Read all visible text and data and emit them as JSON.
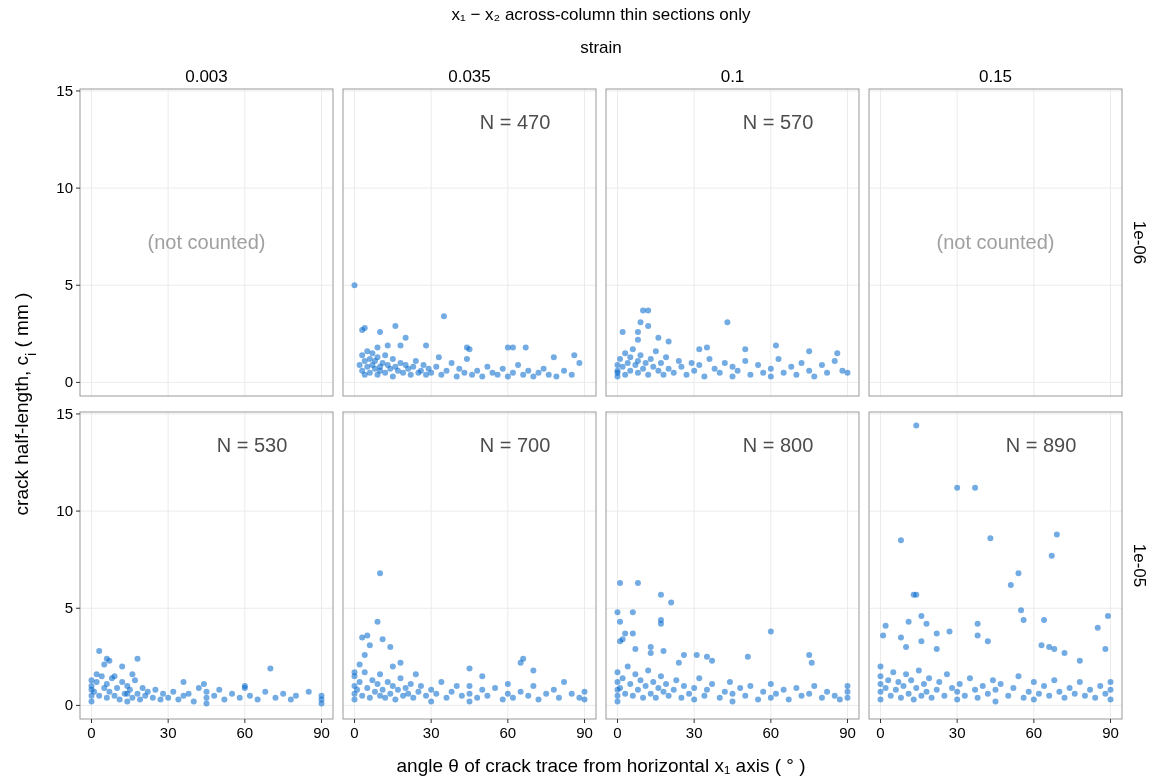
{
  "chart_data": [
    {
      "type": "scatter",
      "x2label": "0.003",
      "ylabel": "crack half-length, c$_{i}$ ( mm )",
      "annotations": [
        "(not counted)"
      ],
      "xlim": [
        -4.5,
        94.5
      ],
      "ylim": [
        -0.7,
        15.1
      ],
      "xticks": [
        0,
        30,
        60,
        90
      ],
      "yticks": [
        0,
        5,
        10,
        15
      ],
      "grid": true,
      "tick_labels": "y"
    },
    {
      "type": "scatter",
      "title": "x₁ − x₂ across-column thin sections only",
      "subtitle": "strain",
      "x2label": "0.035",
      "annotations": [
        "N = 470"
      ],
      "color": "#0066cc",
      "marker": "circle",
      "xlim": [
        -4.5,
        94.5
      ],
      "ylim": [
        -0.7,
        15.1
      ],
      "xticks": [
        0,
        30,
        60,
        90
      ],
      "yticks": [
        0,
        5,
        10,
        15
      ],
      "grid": true,
      "tick_labels": false,
      "x": [
        0,
        35,
        3,
        4,
        10,
        16,
        20,
        9,
        13,
        18,
        28,
        44,
        45,
        60,
        62,
        67,
        78,
        86,
        88,
        2,
        3,
        3,
        4,
        4,
        5,
        5,
        6,
        6,
        7,
        7,
        8,
        8,
        9,
        9,
        10,
        10,
        11,
        12,
        12,
        13,
        14,
        15,
        15,
        16,
        17,
        18,
        19,
        20,
        21,
        22,
        23,
        24,
        25,
        26,
        27,
        28,
        29,
        30,
        32,
        33,
        34,
        36,
        38,
        40,
        41,
        43,
        44,
        46,
        48,
        50,
        52,
        54,
        56,
        58,
        60,
        62,
        64,
        66,
        68,
        70,
        72,
        74,
        76,
        79,
        82,
        85
      ],
      "values": [
        5.0,
        3.4,
        2.7,
        2.8,
        2.6,
        2.9,
        2.3,
        1.8,
        1.9,
        1.9,
        1.9,
        1.8,
        1.7,
        1.8,
        1.8,
        1.8,
        1.3,
        1.4,
        1.0,
        0.9,
        1.4,
        0.6,
        1.1,
        0.4,
        1.6,
        0.8,
        1.2,
        0.5,
        0.9,
        1.5,
        0.7,
        1.1,
        0.4,
        1.3,
        0.8,
        0.6,
        1.0,
        1.4,
        0.5,
        0.9,
        0.7,
        1.2,
        0.3,
        0.8,
        0.6,
        1.0,
        0.5,
        0.9,
        0.7,
        0.4,
        0.8,
        1.1,
        0.5,
        0.6,
        0.9,
        0.4,
        0.7,
        0.5,
        0.8,
        1.3,
        0.4,
        0.6,
        1.0,
        0.3,
        0.7,
        0.5,
        1.2,
        0.4,
        0.6,
        0.3,
        0.8,
        0.5,
        0.4,
        0.7,
        0.3,
        0.5,
        0.9,
        0.4,
        0.6,
        0.3,
        0.5,
        0.7,
        0.4,
        0.3,
        0.6,
        0.4
      ]
    },
    {
      "type": "scatter",
      "x2label": "0.1",
      "annotations": [
        "N = 570"
      ],
      "color": "#0066cc",
      "marker": "circle",
      "xlim": [
        -4.5,
        94.5
      ],
      "ylim": [
        -0.7,
        15.1
      ],
      "xticks": [
        0,
        30,
        60,
        90
      ],
      "yticks": [
        0,
        5,
        10,
        15
      ],
      "grid": true,
      "tick_labels": false,
      "x": [
        10,
        12,
        9,
        12,
        8,
        43,
        2,
        8,
        16,
        20,
        35,
        32,
        50,
        62,
        75,
        86,
        90,
        0,
        0,
        0,
        0,
        1,
        2,
        3,
        3,
        4,
        5,
        5,
        6,
        7,
        8,
        8,
        9,
        10,
        11,
        12,
        13,
        14,
        15,
        16,
        17,
        18,
        19,
        20,
        22,
        24,
        25,
        27,
        29,
        30,
        32,
        34,
        36,
        38,
        40,
        42,
        45,
        45,
        47,
        50,
        52,
        55,
        57,
        60,
        60,
        63,
        65,
        68,
        70,
        72,
        75,
        77,
        80,
        82,
        85,
        88
      ],
      "values": [
        3.7,
        3.7,
        3.1,
        2.9,
        2.6,
        3.1,
        2.6,
        2.2,
        2.3,
        2.1,
        1.8,
        1.7,
        1.7,
        1.9,
        1.6,
        1.5,
        0.5,
        0.3,
        0.6,
        0.9,
        0.5,
        1.2,
        0.8,
        1.5,
        0.4,
        1.0,
        1.3,
        0.6,
        1.7,
        0.9,
        1.1,
        0.5,
        1.4,
        0.7,
        1.0,
        0.4,
        1.2,
        0.8,
        1.6,
        0.6,
        1.0,
        0.4,
        1.3,
        0.7,
        0.5,
        1.1,
        0.8,
        0.4,
        1.0,
        0.6,
        0.9,
        0.3,
        1.2,
        0.7,
        0.5,
        1.0,
        0.3,
        0.8,
        0.6,
        1.1,
        0.4,
        0.9,
        0.5,
        0.3,
        0.7,
        1.2,
        0.5,
        0.8,
        0.4,
        1.0,
        0.6,
        0.3,
        0.9,
        0.5,
        1.1,
        0.6
      ]
    },
    {
      "type": "scatter",
      "x2label": "0.15",
      "y2label": "1e-06",
      "annotations": [
        "(not counted)"
      ],
      "xlim": [
        -4.5,
        94.5
      ],
      "ylim": [
        -0.7,
        15.1
      ],
      "xticks": [
        0,
        30,
        60,
        90
      ],
      "yticks": [
        0,
        5,
        10,
        15
      ],
      "grid": true,
      "tick_labels": false
    },
    {
      "type": "scatter",
      "annotations": [
        "N = 530"
      ],
      "color": "#0066cc",
      "marker": "circle",
      "xlim": [
        -4.5,
        94.5
      ],
      "ylim": [
        -0.7,
        15.1
      ],
      "xticks": [
        0,
        30,
        60,
        90
      ],
      "yticks": [
        0,
        5,
        10,
        15
      ],
      "grid": true,
      "x": [
        3,
        6,
        5,
        7,
        12,
        18,
        70,
        2,
        9,
        16,
        36,
        44,
        60,
        0,
        0,
        0,
        0,
        0,
        1,
        2,
        3,
        4,
        5,
        6,
        6,
        7,
        8,
        9,
        10,
        11,
        12,
        13,
        14,
        14,
        14,
        15,
        16,
        17,
        18,
        19,
        20,
        21,
        22,
        24,
        25,
        27,
        28,
        30,
        32,
        34,
        36,
        38,
        40,
        42,
        45,
        45,
        45,
        48,
        50,
        52,
        55,
        58,
        60,
        62,
        65,
        68,
        72,
        75,
        78,
        80,
        85,
        90,
        90,
        90
      ],
      "values": [
        2.8,
        2.4,
        2.1,
        2.3,
        2.0,
        2.4,
        1.9,
        1.6,
        1.5,
        1.6,
        1.2,
        1.1,
        1.0,
        0.2,
        0.5,
        0.8,
        1.0,
        1.3,
        0.7,
        1.2,
        0.5,
        1.5,
        0.9,
        0.4,
        1.1,
        0.7,
        1.4,
        0.5,
        0.9,
        0.3,
        1.2,
        0.6,
        0.2,
        0.6,
        1.0,
        0.8,
        0.4,
        1.3,
        0.6,
        0.3,
        0.9,
        0.5,
        0.7,
        0.4,
        0.8,
        0.3,
        0.6,
        0.4,
        0.7,
        0.3,
        0.5,
        0.6,
        0.2,
        0.9,
        0.1,
        0.4,
        0.7,
        0.5,
        0.8,
        0.3,
        0.6,
        0.4,
        0.9,
        0.5,
        0.3,
        0.7,
        0.4,
        0.6,
        0.3,
        0.5,
        0.7,
        0.1,
        0.3,
        0.5
      ]
    },
    {
      "type": "scatter",
      "xlabel": "angle θ of crack trace from horizontal  x₁  axis  ( ° )",
      "annotations": [
        "N = 700"
      ],
      "color": "#0066cc",
      "marker": "circle",
      "xlim": [
        -4.5,
        94.5
      ],
      "ylim": [
        -0.7,
        15.1
      ],
      "xticks": [
        0,
        30,
        60,
        90
      ],
      "yticks": [
        0,
        5,
        10,
        15
      ],
      "grid": true,
      "tick_labels": "x",
      "x": [
        10,
        9,
        3,
        5,
        11,
        6,
        14,
        2,
        18,
        45,
        66,
        65,
        70,
        15,
        0,
        4,
        24,
        50,
        0,
        0,
        0,
        0,
        1,
        2,
        3,
        4,
        5,
        6,
        7,
        8,
        9,
        10,
        10,
        11,
        12,
        13,
        14,
        15,
        16,
        17,
        18,
        19,
        20,
        21,
        22,
        23,
        25,
        26,
        28,
        30,
        30,
        32,
        34,
        36,
        38,
        40,
        42,
        45,
        45,
        45,
        48,
        50,
        52,
        55,
        58,
        60,
        60,
        62,
        65,
        68,
        70,
        72,
        75,
        78,
        80,
        82,
        85,
        88,
        90,
        90
      ],
      "values": [
        6.8,
        4.3,
        3.5,
        3.6,
        3.4,
        3.1,
        3.0,
        2.1,
        2.2,
        1.9,
        2.4,
        2.2,
        1.8,
        2.0,
        1.7,
        2.6,
        1.6,
        1.5,
        0.3,
        0.6,
        1.0,
        1.5,
        0.8,
        1.2,
        0.5,
        1.7,
        0.9,
        0.4,
        1.3,
        0.7,
        1.1,
        0.5,
        1.6,
        0.8,
        0.4,
        1.2,
        0.6,
        1.0,
        0.3,
        0.8,
        1.4,
        0.5,
        0.9,
        0.6,
        1.1,
        0.4,
        0.7,
        1.0,
        0.5,
        0.2,
        0.8,
        0.6,
        1.2,
        0.4,
        0.7,
        1.0,
        0.5,
        0.2,
        0.6,
        1.0,
        0.4,
        0.8,
        0.5,
        0.9,
        0.3,
        0.6,
        1.1,
        0.4,
        0.7,
        0.5,
        1.0,
        0.3,
        0.6,
        0.8,
        0.4,
        1.2,
        0.6,
        0.4,
        0.3,
        0.7
      ]
    },
    {
      "type": "scatter",
      "annotations": [
        "N = 800"
      ],
      "color": "#0066cc",
      "marker": "circle",
      "xlim": [
        -4.5,
        94.5
      ],
      "ylim": [
        -0.7,
        15.1
      ],
      "xticks": [
        0,
        30,
        60,
        90
      ],
      "yticks": [
        0,
        5,
        10,
        15
      ],
      "grid": true,
      "tick_labels": "x",
      "x": [
        1,
        8,
        17,
        21,
        0,
        1,
        6,
        17,
        17,
        3,
        6,
        1,
        2,
        7,
        13,
        13,
        18,
        26,
        24,
        31,
        35,
        37,
        60,
        51,
        75,
        76,
        0,
        0,
        0,
        0,
        0,
        1,
        2,
        3,
        4,
        5,
        6,
        7,
        8,
        9,
        10,
        11,
        12,
        13,
        14,
        15,
        16,
        17,
        18,
        19,
        20,
        22,
        23,
        25,
        26,
        28,
        30,
        30,
        32,
        34,
        35,
        37,
        40,
        42,
        44,
        45,
        45,
        48,
        50,
        52,
        55,
        57,
        60,
        60,
        62,
        65,
        67,
        70,
        72,
        75,
        77,
        80,
        82,
        85,
        87,
        90,
        90,
        90
      ],
      "values": [
        6.3,
        6.3,
        5.7,
        5.3,
        4.8,
        4.3,
        4.8,
        4.4,
        4.2,
        3.7,
        3.7,
        3.3,
        3.4,
        2.9,
        3.0,
        2.7,
        2.8,
        2.6,
        2.2,
        2.6,
        2.5,
        2.3,
        3.8,
        2.5,
        2.6,
        2.2,
        0.2,
        0.5,
        0.8,
        1.2,
        1.7,
        0.9,
        1.4,
        0.6,
        2.0,
        1.1,
        0.5,
        1.6,
        0.8,
        1.3,
        0.4,
        1.0,
        1.8,
        0.6,
        1.2,
        0.4,
        0.9,
        1.5,
        0.7,
        1.1,
        0.5,
        0.8,
        1.3,
        0.4,
        1.0,
        0.6,
        0.3,
        0.9,
        1.4,
        0.5,
        0.8,
        1.1,
        0.4,
        0.7,
        1.2,
        0.2,
        0.6,
        0.9,
        0.5,
        1.0,
        0.3,
        0.7,
        0.4,
        1.1,
        0.6,
        0.8,
        0.3,
        0.9,
        0.5,
        0.6,
        1.0,
        0.4,
        0.7,
        0.5,
        0.3,
        0.4,
        0.7,
        1.0
      ]
    },
    {
      "type": "scatter",
      "y2label": "1e-05",
      "annotations": [
        "N = 890"
      ],
      "color": "#0066cc",
      "marker": "circle",
      "xlim": [
        -4.5,
        94.5
      ],
      "ylim": [
        -0.7,
        15.1
      ],
      "xticks": [
        0,
        30,
        60,
        90
      ],
      "yticks": [
        0,
        5,
        10,
        15
      ],
      "grid": true,
      "tick_labels": "x",
      "x": [
        14,
        30,
        37,
        8,
        43,
        69,
        67,
        54,
        51,
        13,
        14,
        55,
        16,
        11,
        56,
        64,
        85,
        89,
        2,
        18,
        38,
        1,
        27,
        38,
        42,
        8,
        16,
        10,
        22,
        22,
        63,
        66,
        68,
        72,
        88,
        78,
        0,
        0,
        0,
        0,
        0,
        2,
        3,
        4,
        5,
        6,
        7,
        8,
        9,
        10,
        11,
        12,
        13,
        14,
        15,
        16,
        17,
        18,
        19,
        20,
        22,
        23,
        25,
        26,
        28,
        30,
        30,
        31,
        33,
        35,
        37,
        38,
        40,
        42,
        44,
        45,
        45,
        47,
        50,
        52,
        54,
        56,
        58,
        60,
        60,
        62,
        64,
        66,
        68,
        70,
        72,
        74,
        76,
        78,
        80,
        82,
        84,
        86,
        88,
        90,
        90,
        90
      ],
      "values": [
        14.4,
        11.2,
        11.2,
        8.5,
        8.6,
        8.8,
        7.7,
        6.8,
        6.2,
        5.7,
        5.7,
        4.9,
        4.6,
        4.3,
        4.4,
        4.4,
        4.0,
        4.6,
        4.1,
        4.2,
        4.2,
        3.6,
        3.8,
        3.6,
        3.3,
        3.5,
        3.3,
        3.0,
        3.7,
        2.9,
        3.1,
        3.0,
        2.9,
        2.7,
        2.9,
        2.3,
        0.3,
        0.7,
        1.1,
        1.5,
        2.0,
        0.9,
        1.3,
        0.5,
        1.7,
        0.8,
        1.2,
        0.4,
        1.0,
        1.6,
        0.6,
        1.3,
        0.3,
        0.9,
        1.8,
        0.5,
        1.1,
        0.7,
        1.4,
        0.4,
        0.8,
        1.2,
        0.5,
        1.6,
        0.9,
        0.3,
        0.7,
        1.1,
        0.5,
        1.4,
        0.8,
        0.4,
        1.0,
        0.6,
        1.3,
        0.2,
        0.8,
        1.1,
        0.5,
        0.9,
        1.5,
        0.4,
        0.7,
        0.3,
        1.2,
        0.6,
        1.0,
        0.5,
        1.3,
        0.7,
        0.4,
        0.9,
        0.6,
        1.2,
        0.5,
        0.8,
        0.4,
        1.0,
        0.6,
        0.3,
        0.8,
        1.2
      ]
    }
  ]
}
